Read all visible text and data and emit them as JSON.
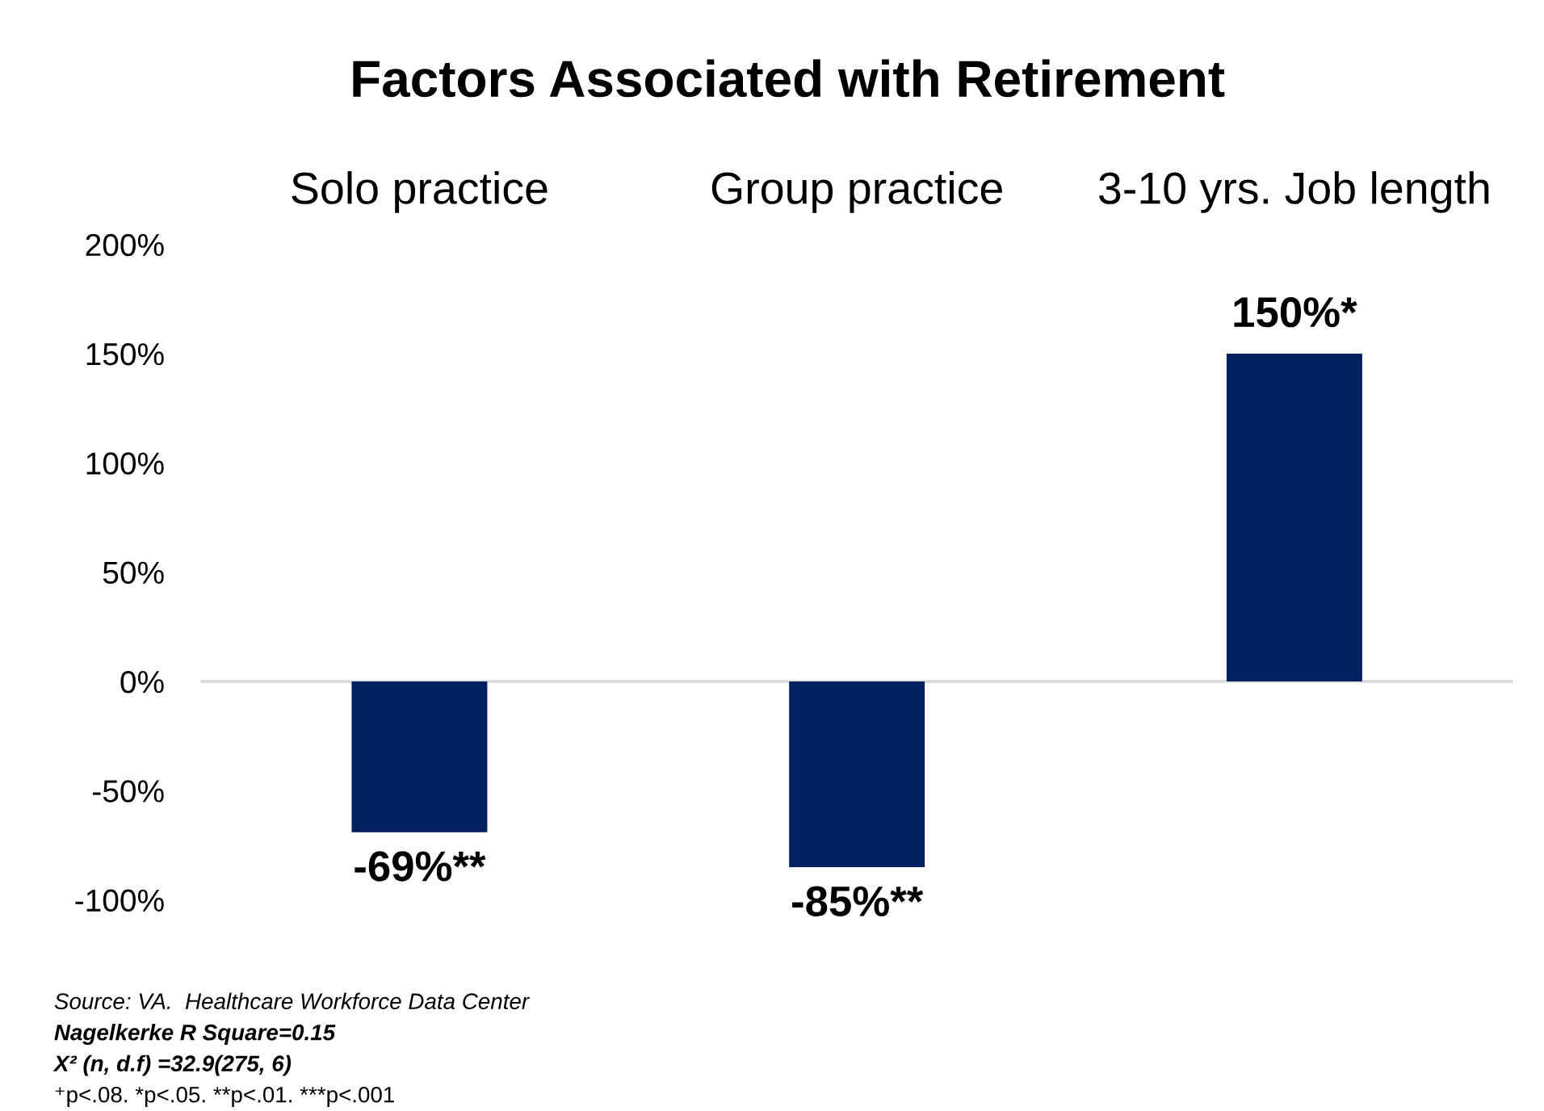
{
  "chart_data": {
    "type": "bar",
    "title": "Factors Associated with Retirement",
    "categories": [
      "Solo practice",
      "Group practice",
      "3-10 yrs. Job length"
    ],
    "values": [
      -69,
      -85,
      150
    ],
    "color": "#002060",
    "value_labels": [
      "-69%**",
      "-85%**",
      "150%*"
    ],
    "ylim": [
      -100,
      200
    ],
    "yticks": [
      {
        "value": -100,
        "label": "-100%"
      },
      {
        "value": -50,
        "label": "-50%"
      },
      {
        "value": 0,
        "label": "0%"
      },
      {
        "value": 50,
        "label": "50%"
      },
      {
        "value": 100,
        "label": "100%"
      },
      {
        "value": 150,
        "label": "150%"
      },
      {
        "value": 200,
        "label": "200%"
      }
    ],
    "grid": false,
    "ref_lines": [
      {
        "axis": "y",
        "value": 0,
        "color": "#d9d9d9"
      }
    ],
    "annotations": [
      "Source: VA.  Healthcare Workforce Data Center",
      "Nagelkerke R Square=0.15",
      "X² (n, d.f) =32.9(275, 6)",
      "⁺p<.08. *p<.05. **p<.01. ***p<.001"
    ]
  }
}
